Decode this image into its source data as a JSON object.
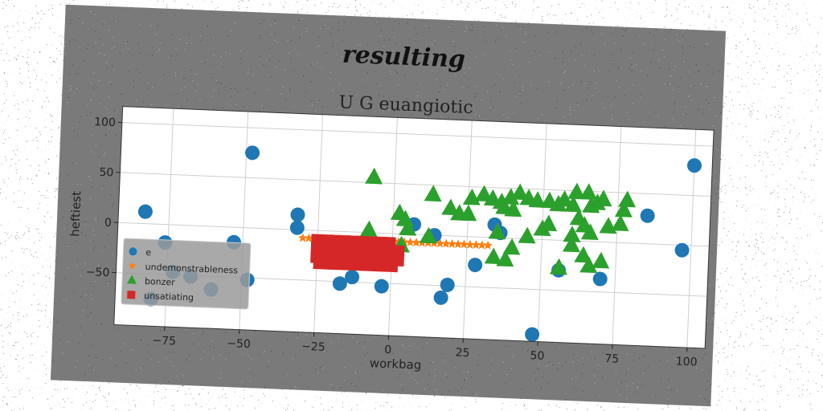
{
  "suptitle": "resulting",
  "chart_data": {
    "type": "scatter",
    "title": "U G euangiotic",
    "xlabel": "workbag",
    "ylabel": "heftiest",
    "xlim": [
      -92,
      106
    ],
    "ylim": [
      -102,
      116
    ],
    "xticks": [
      -75,
      -50,
      -25,
      0,
      25,
      50,
      75,
      100
    ],
    "yticks": [
      -50,
      0,
      50,
      100
    ],
    "xtick_labels": [
      "−75",
      "−50",
      "−25",
      "0",
      "25",
      "50",
      "75",
      "100"
    ],
    "ytick_labels": [
      "−50",
      "0",
      "50",
      "100"
    ],
    "grid": true,
    "legend_position": "lower-left",
    "series": [
      {
        "name": "e",
        "marker": "circle",
        "color": "#1f77b4",
        "points": [
          [
            -83,
            12
          ],
          [
            -48,
            75
          ],
          [
            -76,
            -18
          ],
          [
            -53,
            -15
          ],
          [
            -32,
            15
          ],
          [
            -32,
            2
          ],
          [
            -73,
            -47
          ],
          [
            -67,
            -51
          ],
          [
            -60,
            -63
          ],
          [
            -48,
            -52
          ],
          [
            -17,
            -52
          ],
          [
            -13,
            -45
          ],
          [
            -3,
            -53
          ],
          [
            7,
            10
          ],
          [
            14,
            0
          ],
          [
            19,
            -49
          ],
          [
            17,
            -62
          ],
          [
            28,
            -28
          ],
          [
            34,
            13
          ],
          [
            36,
            5
          ],
          [
            48,
            -95
          ],
          [
            56,
            -30
          ],
          [
            70,
            -37
          ],
          [
            85,
            28
          ],
          [
            97,
            -5
          ],
          [
            100,
            80
          ],
          [
            -80,
            -75
          ]
        ]
      },
      {
        "name": "undemonstrableness",
        "marker": "star",
        "color": "#ff7f0e",
        "points": [
          [
            -30,
            -8
          ],
          [
            -28,
            -8
          ],
          [
            -26,
            -8
          ],
          [
            -24,
            -8
          ],
          [
            -22,
            -8
          ],
          [
            -20,
            -8
          ],
          [
            -18,
            -8
          ],
          [
            -16,
            -8
          ],
          [
            -14,
            -8
          ],
          [
            -12,
            -8
          ],
          [
            -10,
            -8
          ],
          [
            -8,
            -8
          ],
          [
            -6,
            -8
          ],
          [
            -4,
            -8
          ],
          [
            -2,
            -8
          ],
          [
            0,
            -8
          ],
          [
            2,
            -8
          ],
          [
            4,
            -8
          ],
          [
            6,
            -8
          ],
          [
            8,
            -8
          ],
          [
            10,
            -8
          ],
          [
            12,
            -8
          ],
          [
            14,
            -8
          ],
          [
            16,
            -8
          ],
          [
            18,
            -8
          ],
          [
            20,
            -8
          ],
          [
            22,
            -8
          ],
          [
            24,
            -8
          ],
          [
            26,
            -8
          ],
          [
            28,
            -8
          ],
          [
            30,
            -8
          ],
          [
            32,
            -8
          ]
        ]
      },
      {
        "name": "bonzer",
        "marker": "triangle",
        "color": "#2ca02c",
        "points": [
          [
            -7,
            55
          ],
          [
            -8,
            2
          ],
          [
            2,
            20
          ],
          [
            4,
            14
          ],
          [
            5,
            5
          ],
          [
            3,
            -12
          ],
          [
            12,
            -2
          ],
          [
            13,
            40
          ],
          [
            19,
            27
          ],
          [
            22,
            22
          ],
          [
            25,
            22
          ],
          [
            26,
            38
          ],
          [
            30,
            42
          ],
          [
            33,
            38
          ],
          [
            36,
            35
          ],
          [
            37,
            30
          ],
          [
            39,
            40
          ],
          [
            40,
            28
          ],
          [
            42,
            45
          ],
          [
            45,
            40
          ],
          [
            48,
            38
          ],
          [
            52,
            38
          ],
          [
            55,
            35
          ],
          [
            57,
            40
          ],
          [
            60,
            35
          ],
          [
            61,
            48
          ],
          [
            65,
            48
          ],
          [
            66,
            35
          ],
          [
            68,
            38
          ],
          [
            70,
            42
          ],
          [
            62,
            22
          ],
          [
            64,
            15
          ],
          [
            66,
            8
          ],
          [
            60,
            5
          ],
          [
            52,
            15
          ],
          [
            50,
            10
          ],
          [
            45,
            2
          ],
          [
            40,
            -10
          ],
          [
            38,
            -22
          ],
          [
            34,
            -20
          ],
          [
            60,
            -5
          ],
          [
            64,
            -15
          ],
          [
            66,
            -25
          ],
          [
            56,
            -28
          ],
          [
            72,
            15
          ],
          [
            76,
            18
          ],
          [
            77,
            32
          ],
          [
            78,
            42
          ],
          [
            70,
            -20
          ],
          [
            35,
            5
          ]
        ]
      },
      {
        "name": "unsatiating",
        "marker": "square",
        "color": "#d62728",
        "points": [
          [
            -25,
            -10
          ],
          [
            -22,
            -10
          ],
          [
            -19,
            -10
          ],
          [
            -16,
            -10
          ],
          [
            -13,
            -10
          ],
          [
            -10,
            -10
          ],
          [
            -7,
            -10
          ],
          [
            -4,
            -10
          ],
          [
            -1,
            -10
          ],
          [
            -25,
            -18
          ],
          [
            -22,
            -18
          ],
          [
            -19,
            -18
          ],
          [
            -16,
            -18
          ],
          [
            -13,
            -18
          ],
          [
            -10,
            -18
          ],
          [
            -7,
            -18
          ],
          [
            -4,
            -18
          ],
          [
            -1,
            -18
          ],
          [
            2,
            -18
          ],
          [
            -25,
            -26
          ],
          [
            -22,
            -26
          ],
          [
            -19,
            -26
          ],
          [
            -16,
            -26
          ],
          [
            -13,
            -26
          ],
          [
            -10,
            -26
          ],
          [
            -7,
            -26
          ],
          [
            -4,
            -26
          ],
          [
            -1,
            -26
          ],
          [
            2,
            -26
          ],
          [
            -24,
            -32
          ],
          [
            -20,
            -32
          ],
          [
            -16,
            -32
          ],
          [
            -12,
            -32
          ],
          [
            -8,
            -32
          ],
          [
            -4,
            -32
          ],
          [
            0,
            -32
          ]
        ]
      }
    ]
  }
}
